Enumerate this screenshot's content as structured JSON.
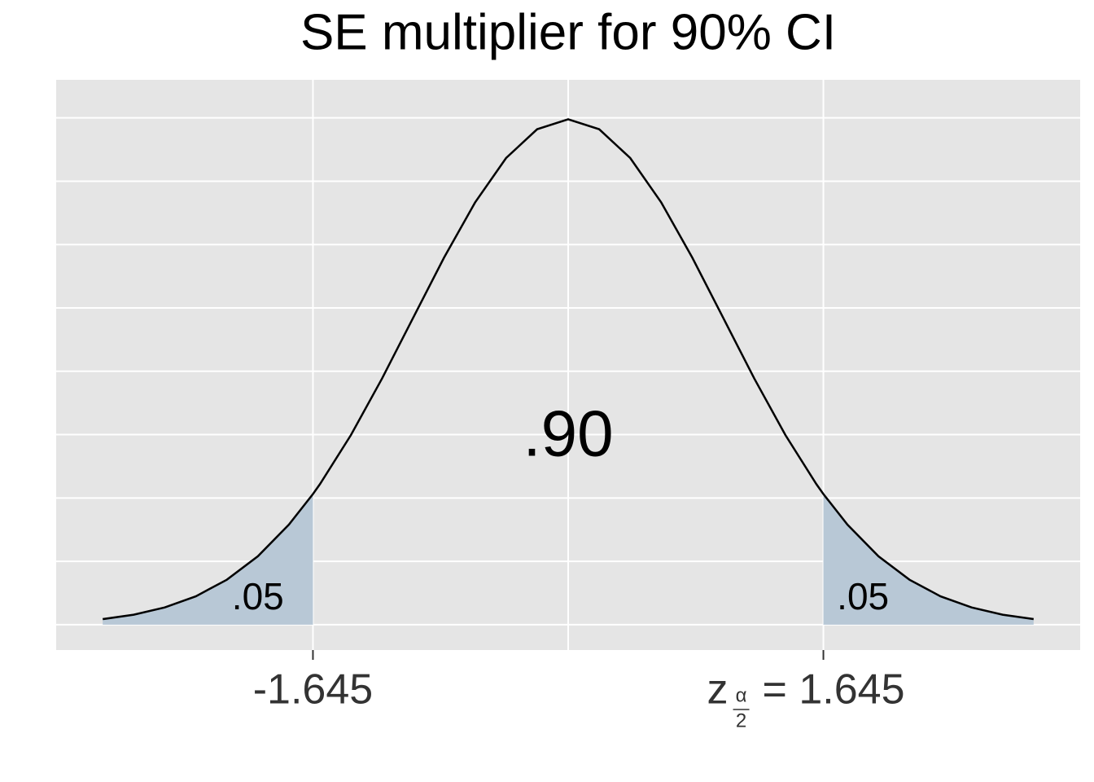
{
  "chart_data": {
    "type": "density",
    "title": "SE multiplier for 90% CI",
    "x": [
      -3,
      -2.8,
      -2.6,
      -2.4,
      -2.2,
      -2,
      -1.8,
      -1.645,
      -1.6,
      -1.4,
      -1.2,
      -1,
      -0.8,
      -0.6,
      -0.4,
      -0.2,
      0,
      0.2,
      0.4,
      0.6,
      0.8,
      1,
      1.2,
      1.4,
      1.6,
      1.645,
      1.8,
      2,
      2.2,
      2.4,
      2.6,
      2.8,
      3
    ],
    "values": [
      0.0044,
      0.0079,
      0.0136,
      0.0224,
      0.0355,
      0.054,
      0.079,
      0.1031,
      0.1109,
      0.1497,
      0.1942,
      0.242,
      0.2897,
      0.3332,
      0.3683,
      0.391,
      0.3989,
      0.391,
      0.3683,
      0.3332,
      0.2897,
      0.242,
      0.1942,
      0.1497,
      0.1109,
      0.1031,
      0.079,
      0.054,
      0.0355,
      0.0224,
      0.0136,
      0.0079,
      0.0044
    ],
    "color": "#000000",
    "shade": [
      {
        "from": -3,
        "to": -1.645,
        "color": "#b8c8d6"
      },
      {
        "from": 1.645,
        "to": 3,
        "color": "#b8c8d6"
      }
    ],
    "annotations": [
      {
        "text": ".05",
        "x": -2.0,
        "y": 0.02,
        "size": "small"
      },
      {
        "text": ".05",
        "x": 1.9,
        "y": 0.02,
        "size": "small"
      },
      {
        "text": ".90",
        "x": 0,
        "y": 0.147,
        "size": "large"
      }
    ],
    "xlim": [
      -3.3,
      3.3
    ],
    "ylim": [
      -0.02,
      0.43
    ],
    "xticks": [
      -1.645,
      {
        "value": 1.645,
        "label": {
          "symbol": "z",
          "sub_top": "α",
          "sub_bottom": "2",
          "text": "= 1.645"
        }
      }
    ],
    "xgrid": [
      -1.645,
      0,
      1.645
    ],
    "ygrid": [
      0,
      0.05,
      0.1,
      0.15,
      0.2,
      0.25,
      0.3,
      0.35,
      0.4
    ],
    "grid": true
  }
}
